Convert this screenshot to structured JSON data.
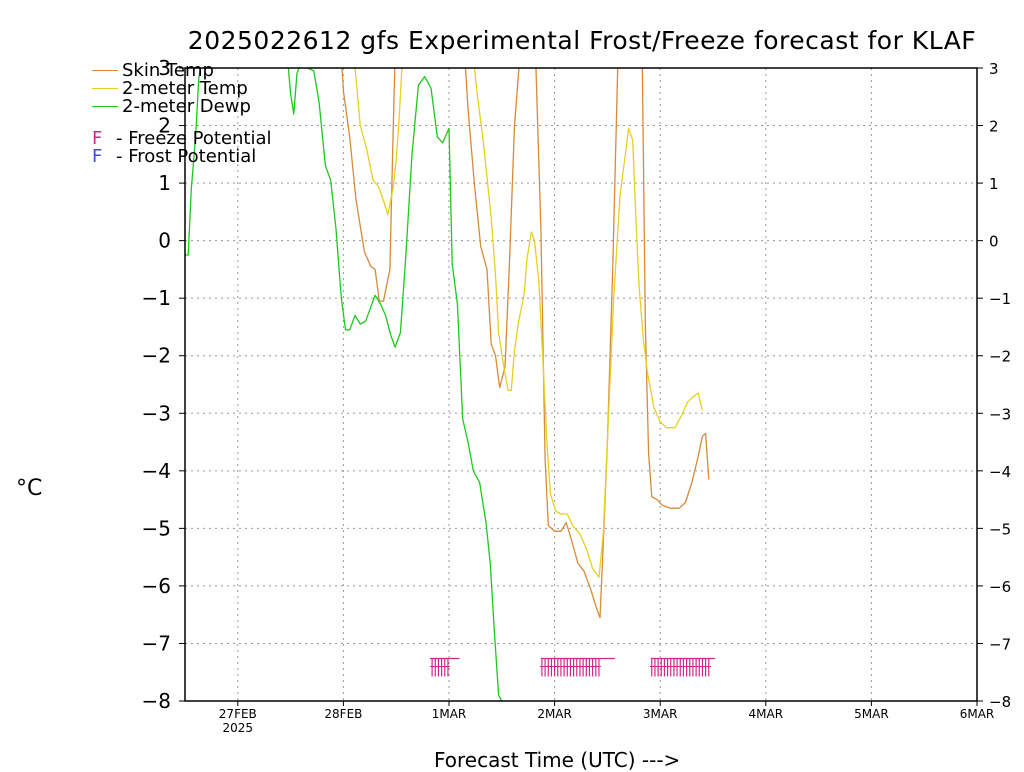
{
  "title": "2025022612 gfs Experimental Frost/Freeze forecast for KLAF",
  "y_unit": "°C",
  "x_label": "Forecast Time (UTC) --->",
  "colors": {
    "skin": "#d88a3a",
    "t2m": "#e6d020",
    "dewp": "#1ec81e",
    "freeze": "#cc2a8c",
    "frost": "#3f52c8",
    "grid": "#9a9a9a"
  },
  "legend": [
    {
      "key": "skin",
      "label": "Skin Temp"
    },
    {
      "key": "t2m",
      "label": "2-meter Temp"
    },
    {
      "key": "dewp",
      "label": "2-meter Dewp"
    }
  ],
  "legend_flags": [
    {
      "key": "freeze",
      "letter": "F",
      "label": " - Freeze Potential"
    },
    {
      "key": "frost",
      "letter": "F",
      "label": " - Frost Potential"
    }
  ],
  "chart_data": {
    "type": "line",
    "title": "2025022612 gfs Experimental Frost/Freeze forecast for KLAF",
    "xlabel": "Forecast Time (UTC) --->",
    "ylabel": "°C",
    "x_unit": "days from 2025-02-26 12Z",
    "xlim": [
      0,
      7.5
    ],
    "ylim": [
      -8,
      3
    ],
    "y_ticks": [
      -8,
      -7,
      -6,
      -5,
      -4,
      -3,
      -2,
      -1,
      0,
      1,
      2,
      3
    ],
    "x_ticks": [
      {
        "x": 0.5,
        "label": "27FEB",
        "sub": "2025"
      },
      {
        "x": 1.5,
        "label": "28FEB",
        "sub": ""
      },
      {
        "x": 2.5,
        "label": "1MAR",
        "sub": ""
      },
      {
        "x": 3.5,
        "label": "2MAR",
        "sub": ""
      },
      {
        "x": 4.5,
        "label": "3MAR",
        "sub": ""
      },
      {
        "x": 5.5,
        "label": "4MAR",
        "sub": ""
      },
      {
        "x": 6.5,
        "label": "5MAR",
        "sub": ""
      },
      {
        "x": 7.5,
        "label": "6MAR",
        "sub": ""
      }
    ],
    "grid": true,
    "series": [
      {
        "name": "Skin Temp",
        "key": "skin",
        "points": [
          [
            1.48,
            3.2
          ],
          [
            1.5,
            2.6
          ],
          [
            1.56,
            1.8
          ],
          [
            1.62,
            0.7
          ],
          [
            1.7,
            -0.2
          ],
          [
            1.76,
            -0.45
          ],
          [
            1.8,
            -0.5
          ],
          [
            1.84,
            -1.05
          ],
          [
            1.88,
            -1.05
          ],
          [
            1.94,
            -0.5
          ],
          [
            1.97,
            1.8
          ],
          [
            1.99,
            3.2
          ],
          [
            2.65,
            3.2
          ],
          [
            2.68,
            2.3
          ],
          [
            2.74,
            1.0
          ],
          [
            2.8,
            -0.1
          ],
          [
            2.86,
            -0.5
          ],
          [
            2.9,
            -1.8
          ],
          [
            2.94,
            -2.0
          ],
          [
            2.98,
            -2.55
          ],
          [
            3.03,
            -2.2
          ],
          [
            3.07,
            -0.5
          ],
          [
            3.12,
            2.0
          ],
          [
            3.17,
            3.2
          ],
          [
            3.32,
            3.2
          ],
          [
            3.37,
            0.2
          ],
          [
            3.41,
            -3.8
          ],
          [
            3.44,
            -4.95
          ],
          [
            3.5,
            -5.05
          ],
          [
            3.56,
            -5.05
          ],
          [
            3.61,
            -4.9
          ],
          [
            3.66,
            -5.2
          ],
          [
            3.72,
            -5.6
          ],
          [
            3.78,
            -5.75
          ],
          [
            3.84,
            -6.05
          ],
          [
            3.9,
            -6.4
          ],
          [
            3.93,
            -6.55
          ],
          [
            3.96,
            -5.3
          ],
          [
            4.0,
            -3.5
          ],
          [
            4.05,
            -0.5
          ],
          [
            4.1,
            3.2
          ],
          [
            4.33,
            3.2
          ],
          [
            4.36,
            -1.5
          ],
          [
            4.39,
            -3.7
          ],
          [
            4.42,
            -4.45
          ],
          [
            4.47,
            -4.5
          ],
          [
            4.52,
            -4.6
          ],
          [
            4.6,
            -4.65
          ],
          [
            4.68,
            -4.65
          ],
          [
            4.74,
            -4.55
          ],
          [
            4.8,
            -4.2
          ],
          [
            4.86,
            -3.75
          ],
          [
            4.9,
            -3.4
          ],
          [
            4.93,
            -3.35
          ],
          [
            4.96,
            -4.15
          ]
        ]
      },
      {
        "name": "2-meter Temp",
        "key": "t2m",
        "points": [
          [
            1.6,
            3.2
          ],
          [
            1.66,
            2.0
          ],
          [
            1.72,
            1.6
          ],
          [
            1.78,
            1.05
          ],
          [
            1.83,
            0.95
          ],
          [
            1.88,
            0.7
          ],
          [
            1.92,
            0.45
          ],
          [
            1.97,
            0.9
          ],
          [
            2.0,
            1.4
          ],
          [
            2.03,
            2.2
          ],
          [
            2.06,
            3.2
          ],
          [
            2.73,
            3.2
          ],
          [
            2.77,
            2.5
          ],
          [
            2.82,
            1.8
          ],
          [
            2.86,
            1.1
          ],
          [
            2.9,
            0.4
          ],
          [
            2.94,
            -0.6
          ],
          [
            2.97,
            -1.6
          ],
          [
            3.02,
            -2.2
          ],
          [
            3.06,
            -2.6
          ],
          [
            3.09,
            -2.6
          ],
          [
            3.12,
            -1.9
          ],
          [
            3.16,
            -1.4
          ],
          [
            3.21,
            -0.95
          ],
          [
            3.24,
            -0.3
          ],
          [
            3.28,
            0.15
          ],
          [
            3.31,
            0.0
          ],
          [
            3.35,
            -0.7
          ],
          [
            3.39,
            -2.1
          ],
          [
            3.43,
            -3.6
          ],
          [
            3.46,
            -4.4
          ],
          [
            3.51,
            -4.7
          ],
          [
            3.56,
            -4.75
          ],
          [
            3.62,
            -4.75
          ],
          [
            3.67,
            -4.95
          ],
          [
            3.74,
            -5.1
          ],
          [
            3.8,
            -5.35
          ],
          [
            3.86,
            -5.7
          ],
          [
            3.92,
            -5.85
          ],
          [
            3.96,
            -5.1
          ],
          [
            4.0,
            -3.5
          ],
          [
            4.06,
            -1.0
          ],
          [
            4.12,
            0.8
          ],
          [
            4.17,
            1.5
          ],
          [
            4.2,
            1.95
          ],
          [
            4.24,
            1.75
          ],
          [
            4.27,
            0.4
          ],
          [
            4.3,
            -0.8
          ],
          [
            4.34,
            -1.7
          ],
          [
            4.38,
            -2.3
          ],
          [
            4.44,
            -2.9
          ],
          [
            4.5,
            -3.15
          ],
          [
            4.56,
            -3.25
          ],
          [
            4.64,
            -3.25
          ],
          [
            4.7,
            -3.05
          ],
          [
            4.76,
            -2.8
          ],
          [
            4.82,
            -2.7
          ],
          [
            4.86,
            -2.65
          ],
          [
            4.9,
            -2.95
          ]
        ]
      },
      {
        "name": "2-meter Dewp",
        "key": "dewp",
        "points": [
          [
            0.0,
            -0.25
          ],
          [
            0.03,
            -0.25
          ],
          [
            0.06,
            0.9
          ],
          [
            0.1,
            1.8
          ],
          [
            0.13,
            2.8
          ],
          [
            0.16,
            3.2
          ],
          [
            0.97,
            3.2
          ],
          [
            1.0,
            2.55
          ],
          [
            1.03,
            2.2
          ],
          [
            1.06,
            2.9
          ],
          [
            1.1,
            3.1
          ],
          [
            1.16,
            3.0
          ],
          [
            1.22,
            2.95
          ],
          [
            1.27,
            2.4
          ],
          [
            1.33,
            1.3
          ],
          [
            1.38,
            1.05
          ],
          [
            1.43,
            0.2
          ],
          [
            1.48,
            -1.0
          ],
          [
            1.52,
            -1.55
          ],
          [
            1.56,
            -1.55
          ],
          [
            1.61,
            -1.3
          ],
          [
            1.66,
            -1.45
          ],
          [
            1.71,
            -1.4
          ],
          [
            1.76,
            -1.15
          ],
          [
            1.8,
            -0.95
          ],
          [
            1.85,
            -1.1
          ],
          [
            1.9,
            -1.3
          ],
          [
            1.95,
            -1.65
          ],
          [
            1.99,
            -1.85
          ],
          [
            2.04,
            -1.6
          ],
          [
            2.09,
            -0.3
          ],
          [
            2.15,
            1.5
          ],
          [
            2.21,
            2.7
          ],
          [
            2.27,
            2.85
          ],
          [
            2.33,
            2.65
          ],
          [
            2.39,
            1.8
          ],
          [
            2.44,
            1.7
          ],
          [
            2.5,
            1.95
          ],
          [
            2.53,
            -0.4
          ],
          [
            2.58,
            -1.1
          ],
          [
            2.63,
            -3.1
          ],
          [
            2.68,
            -3.5
          ],
          [
            2.73,
            -4.0
          ],
          [
            2.79,
            -4.2
          ],
          [
            2.85,
            -4.9
          ],
          [
            2.89,
            -5.6
          ],
          [
            2.93,
            -6.8
          ],
          [
            2.97,
            -7.9
          ],
          [
            3.0,
            -8.0
          ]
        ]
      }
    ],
    "freeze_marks": [
      {
        "start": 2.32,
        "end": 2.6,
        "ticks": [
          2.34,
          2.37,
          2.4,
          2.43,
          2.46,
          2.49
        ]
      },
      {
        "start": 3.37,
        "end": 4.07,
        "ticks": [
          3.38,
          3.41,
          3.44,
          3.47,
          3.5,
          3.53,
          3.56,
          3.59,
          3.62,
          3.65,
          3.68,
          3.71,
          3.74,
          3.77,
          3.8,
          3.83,
          3.86,
          3.89,
          3.92
        ]
      },
      {
        "start": 4.41,
        "end": 5.02,
        "ticks": [
          4.42,
          4.45,
          4.48,
          4.51,
          4.54,
          4.57,
          4.6,
          4.63,
          4.66,
          4.69,
          4.72,
          4.75,
          4.78,
          4.81,
          4.84,
          4.87,
          4.9,
          4.93,
          4.96
        ]
      }
    ],
    "freeze_level": -7.4
  }
}
